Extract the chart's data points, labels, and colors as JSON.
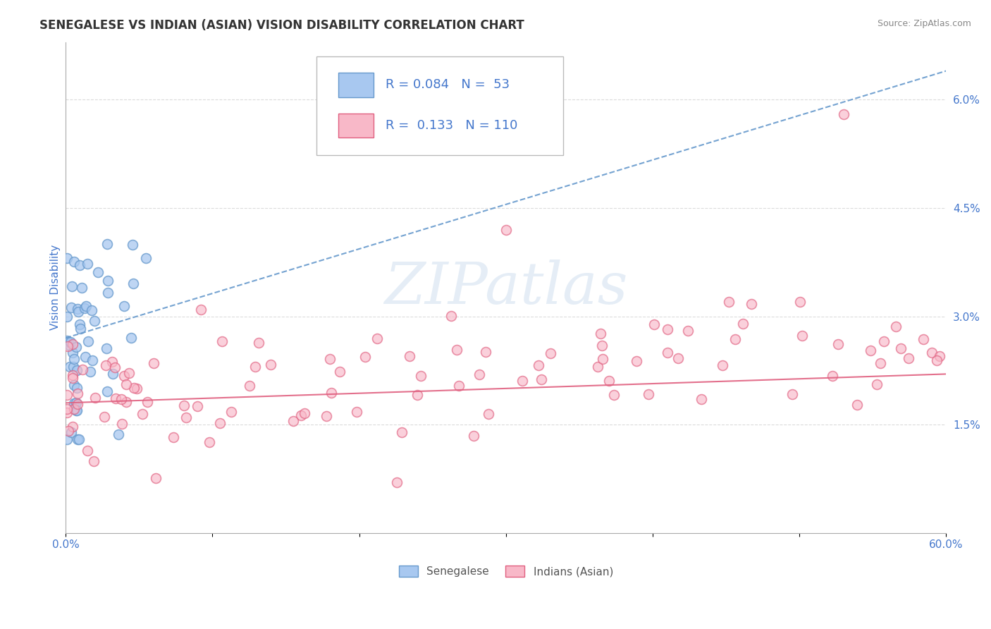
{
  "title": "SENEGALESE VS INDIAN (ASIAN) VISION DISABILITY CORRELATION CHART",
  "source": "Source: ZipAtlas.com",
  "ylabel": "Vision Disability",
  "xlim": [
    0.0,
    0.6
  ],
  "ylim": [
    0.0,
    0.068
  ],
  "xticks": [
    0.0,
    0.1,
    0.2,
    0.3,
    0.4,
    0.5,
    0.6
  ],
  "xticklabels": [
    "0.0%",
    "",
    "",
    "",
    "",
    "",
    "60.0%"
  ],
  "yticks": [
    0.015,
    0.03,
    0.045,
    0.06
  ],
  "yticklabels": [
    "1.5%",
    "3.0%",
    "4.5%",
    "6.0%"
  ],
  "blue_scatter_color": "#a8c8f0",
  "blue_edge_color": "#6699cc",
  "pink_scatter_color": "#f8b8c8",
  "pink_edge_color": "#e06080",
  "blue_line_color": "#6699cc",
  "pink_line_color": "#e06080",
  "legend_text_color": "#4477cc",
  "legend_blue_R": "0.084",
  "legend_blue_N": "53",
  "legend_pink_R": "0.133",
  "legend_pink_N": "110",
  "watermark_text": "ZIPatlas",
  "background_color": "#ffffff",
  "grid_color": "#cccccc",
  "title_color": "#333333",
  "axis_label_color": "#4477cc",
  "tick_color": "#4477cc",
  "blue_trend_start_x": 0.0,
  "blue_trend_start_y": 0.027,
  "blue_trend_end_x": 0.6,
  "blue_trend_end_y": 0.064,
  "pink_trend_start_x": 0.0,
  "pink_trend_start_y": 0.018,
  "pink_trend_end_x": 0.6,
  "pink_trend_end_y": 0.022
}
